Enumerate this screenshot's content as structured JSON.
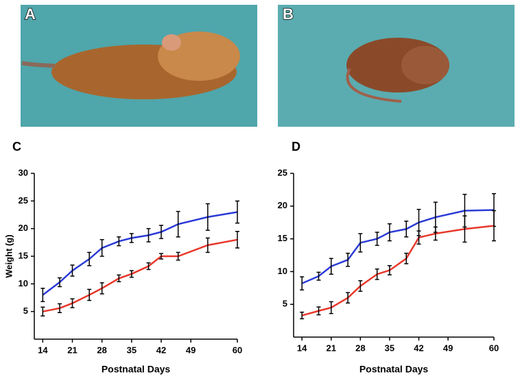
{
  "photos": [
    {
      "label": "A"
    },
    {
      "label": "B"
    }
  ],
  "chart_data": [
    {
      "type": "line",
      "title": "C",
      "y_label": "Weight (g)",
      "x_label": "Postnatal Days",
      "xlim": [
        12,
        60
      ],
      "xticks": [
        14,
        21,
        28,
        35,
        42,
        49,
        60
      ],
      "ylim": [
        0,
        30
      ],
      "yticks": [
        5,
        10,
        15,
        20,
        25,
        30
      ],
      "x": [
        14,
        18,
        21,
        25,
        28,
        32,
        35,
        39,
        42,
        46,
        53,
        60
      ],
      "series": [
        {
          "color": "#2b3bd6",
          "values": [
            8,
            10.3,
            12.4,
            14.5,
            16.5,
            17.7,
            18.3,
            18.8,
            19.4,
            20.8,
            22.1,
            23
          ],
          "errors": [
            1.2,
            0.8,
            1,
            1.2,
            1.5,
            0.8,
            0.8,
            1.2,
            1.2,
            2.3,
            2.4,
            2
          ]
        },
        {
          "color": "#e8372a",
          "values": [
            5,
            5.6,
            6.5,
            8,
            9.2,
            11,
            11.8,
            13.2,
            15,
            15,
            17,
            18
          ],
          "errors": [
            0.8,
            0.8,
            0.8,
            1,
            1,
            0.6,
            0.6,
            0.6,
            0.5,
            0.7,
            1.3,
            1.5
          ]
        }
      ]
    },
    {
      "type": "line",
      "title": "D",
      "x_label": "Postnatal Days",
      "xlim": [
        12,
        60
      ],
      "xticks": [
        14,
        21,
        28,
        35,
        42,
        49,
        60
      ],
      "ylim": [
        0,
        25
      ],
      "yticks": [
        5,
        10,
        15,
        20,
        25
      ],
      "x": [
        14,
        18,
        21,
        25,
        28,
        32,
        35,
        39,
        42,
        46,
        53,
        60
      ],
      "series": [
        {
          "color": "#2b3bd6",
          "values": [
            8.2,
            9.3,
            10.8,
            11.8,
            14.4,
            15,
            16,
            16.5,
            17.5,
            18.3,
            19.3,
            19.4
          ],
          "errors": [
            1,
            0.6,
            1.2,
            1,
            1.4,
            1,
            1.3,
            1.2,
            2,
            2.3,
            2.5,
            2.5
          ]
        },
        {
          "color": "#e8372a",
          "values": [
            3.3,
            4,
            4.5,
            6,
            7.8,
            9.6,
            10.2,
            12,
            15.2,
            15.8,
            16.5,
            17
          ],
          "errors": [
            0.5,
            0.6,
            0.9,
            0.8,
            0.8,
            0.8,
            0.7,
            0.8,
            1,
            1,
            2,
            2.3
          ]
        }
      ]
    }
  ]
}
